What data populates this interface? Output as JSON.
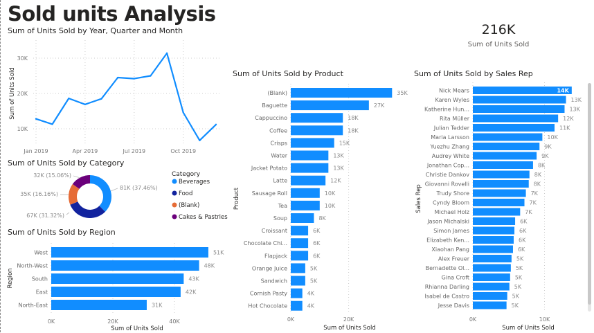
{
  "page": {
    "title": "Sold units Analysis"
  },
  "kpi": {
    "value": "216K",
    "label": "Sum of Units Sold"
  },
  "colors": {
    "bar": "#118DFF",
    "line": "#118DFF",
    "beverages": "#118DFF",
    "food": "#12239E",
    "blank": "#E66C37",
    "cakes": "#6B007B"
  },
  "chart_data": [
    {
      "id": "month",
      "type": "line",
      "title": "Sum of Units Sold by Year, Quarter and Month",
      "xlabel": "",
      "ylabel": "Sum of Units Sold",
      "x": [
        "Jan 2019",
        "Feb 2019",
        "Mar 2019",
        "Apr 2019",
        "May 2019",
        "Jun 2019",
        "Jul 2019",
        "Aug 2019",
        "Sep 2019",
        "Oct 2019",
        "Nov 2019",
        "Dec 2019"
      ],
      "x_ticks": [
        "Jan 2019",
        "Apr 2019",
        "Jul 2019",
        "Oct 2019"
      ],
      "values": [
        12800,
        11300,
        18600,
        16900,
        18500,
        24500,
        24200,
        25000,
        31400,
        14600,
        6700,
        11200
      ],
      "y_ticks": [
        "10K",
        "20K",
        "30K"
      ],
      "y_tick_values": [
        10000,
        20000,
        30000
      ],
      "ylim": [
        5000,
        34000
      ],
      "grid": true
    },
    {
      "id": "category",
      "type": "pie",
      "title": "Sum of Units Sold by Category",
      "legend_title": "Category",
      "legend_position": "right",
      "slices": [
        {
          "name": "Beverages",
          "value": 81,
          "percent": 37.46,
          "label": "81K (37.46%)",
          "color_key": "beverages"
        },
        {
          "name": "Food",
          "value": 67,
          "percent": 31.32,
          "label": "67K (31.32%)",
          "color_key": "food"
        },
        {
          "name": "(Blank)",
          "value": 35,
          "percent": 16.16,
          "label": "35K (16.16%)",
          "color_key": "blank"
        },
        {
          "name": "Cakes & Pastries",
          "value": 32,
          "percent": 15.06,
          "label": "32K (15.06%)",
          "color_key": "cakes"
        }
      ]
    },
    {
      "id": "region",
      "type": "bar",
      "orientation": "horizontal",
      "title": "Sum of Units Sold by Region",
      "xlabel": "Sum of Units Sold",
      "ylabel": "Region",
      "categories": [
        "West",
        "North-West",
        "South",
        "East",
        "North-East"
      ],
      "values": [
        51,
        48,
        43,
        42,
        31
      ],
      "labels": [
        "51K",
        "48K",
        "43K",
        "42K",
        "31K"
      ],
      "x_ticks": [
        "0K",
        "20K",
        "40K"
      ],
      "x_tick_values": [
        0,
        20,
        40
      ],
      "grid": true
    },
    {
      "id": "product",
      "type": "bar",
      "orientation": "horizontal",
      "title": "Sum of Units Sold by Product",
      "xlabel": "Sum of Units Sold",
      "ylabel": "Product",
      "categories": [
        "(Blank)",
        "Baguette",
        "Cappuccino",
        "Coffee",
        "Crisps",
        "Water",
        "Jacket Potato",
        "Latte",
        "Sausage Roll",
        "Tea",
        "Soup",
        "Croissant",
        "Chocolate Chi...",
        "Flapjack",
        "Orange Juice",
        "Sandwich",
        "Cornish Pasty",
        "Hot Chocolate"
      ],
      "values": [
        35,
        27,
        18,
        18,
        15,
        13,
        13,
        12,
        10,
        10,
        8,
        6,
        6,
        6,
        5,
        5,
        4,
        4
      ],
      "labels": [
        "35K",
        "27K",
        "18K",
        "18K",
        "15K",
        "13K",
        "13K",
        "12K",
        "10K",
        "10K",
        "8K",
        "6K",
        "6K",
        "6K",
        "5K",
        "5K",
        "4K",
        "4K"
      ],
      "x_ticks": [
        "0K",
        "20K"
      ],
      "x_tick_values": [
        0,
        20
      ],
      "grid": true
    },
    {
      "id": "salesrep",
      "type": "bar",
      "orientation": "horizontal",
      "title": "Sum of Units Sold by Sales Rep",
      "xlabel": "Sum of Units Sold",
      "ylabel": "Sales Rep",
      "categories": [
        "Nick Mears",
        "Karen Wyles",
        "Katherine Hun...",
        "Rita Müller",
        "Julian Tedder",
        "Maria Larsson",
        "Yuezhu Zhang",
        "Audrey White",
        "Jonathan Cop...",
        "Christie Dankov",
        "Giovanni Rovelli",
        "Trudy Shore",
        "Cyndy Bloom",
        "Michael Holz",
        "Jason Michalski",
        "Simon James",
        "Elizabeth Ken...",
        "Xiaohan Pang",
        "Alex Freuer",
        "Bernadette Ol...",
        "Gina Croft",
        "Rhianna Darling",
        "Isabel de Castro",
        "Jesse Davis"
      ],
      "values": [
        13.8,
        13.0,
        12.8,
        11.9,
        11.4,
        9.7,
        9.3,
        8.9,
        8.4,
        7.9,
        7.8,
        7.4,
        7.2,
        6.6,
        5.9,
        5.8,
        5.7,
        5.6,
        5.4,
        5.3,
        5.2,
        5.1,
        4.8,
        4.7
      ],
      "labels": [
        "14K",
        "13K",
        "13K",
        "12K",
        "11K",
        "10K",
        "9K",
        "9K",
        "8K",
        "8K",
        "8K",
        "7K",
        "7K",
        "7K",
        "6K",
        "6K",
        "6K",
        "6K",
        "5K",
        "5K",
        "5K",
        "5K",
        "5K",
        "5K"
      ],
      "x_ticks": [
        "0K",
        "10K"
      ],
      "x_tick_values": [
        0,
        10
      ],
      "grid": true
    }
  ]
}
